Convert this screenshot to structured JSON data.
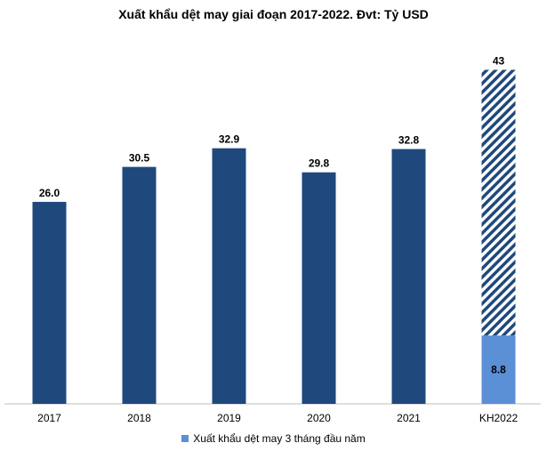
{
  "chart_data": {
    "type": "bar",
    "title": "Xuất khẩu dệt may giai đoạn 2017-2022. Đvt: Tỷ USD",
    "categories": [
      "2017",
      "2018",
      "2019",
      "2020",
      "2021",
      "KH2022"
    ],
    "values": [
      26.0,
      30.5,
      32.9,
      29.8,
      32.8,
      43
    ],
    "value_labels": [
      "26.0",
      "30.5",
      "32.9",
      "29.8",
      "32.8",
      "43"
    ],
    "stacked_part": {
      "category": "KH2022",
      "name": "Xuất khẩu dệt may 3 tháng đầu năm",
      "value": 8.8,
      "label": "8.8"
    },
    "ylim": [
      0,
      45
    ],
    "grid": false,
    "legend_position": "bottom",
    "colors": {
      "main_bar": "#1f497d",
      "stacked_bar": "#5b8fd6",
      "hatch": "#1f497d"
    }
  }
}
